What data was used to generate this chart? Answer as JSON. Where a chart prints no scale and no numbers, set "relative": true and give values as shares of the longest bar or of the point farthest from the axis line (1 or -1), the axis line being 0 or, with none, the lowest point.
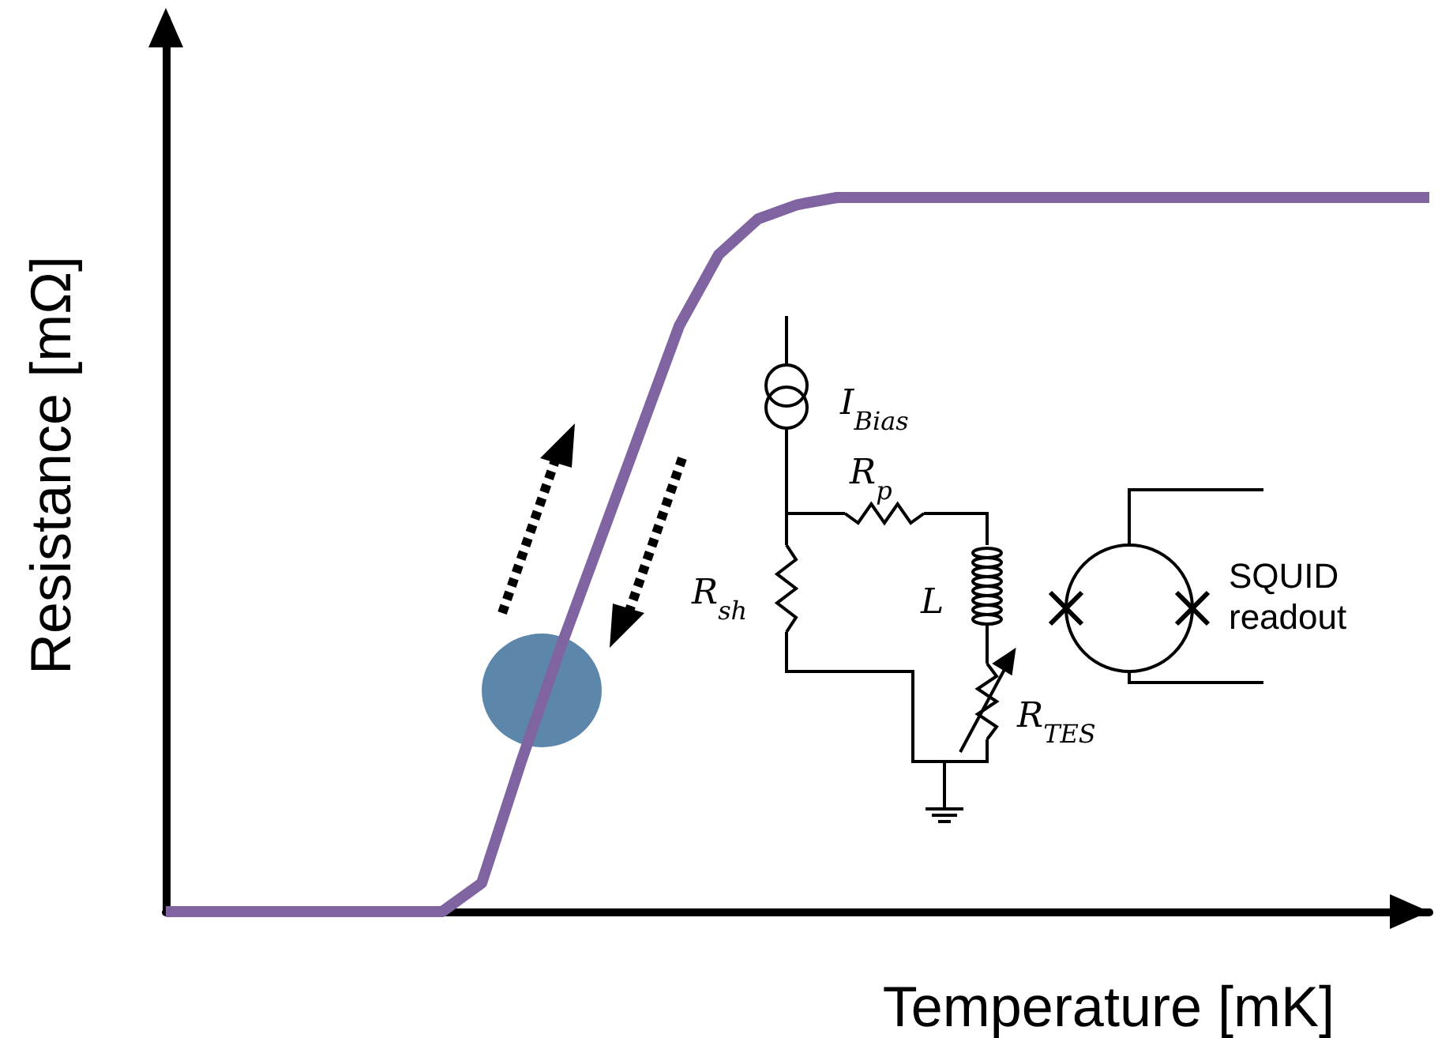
{
  "chart_data": {
    "type": "line",
    "relative": true,
    "xlabel": "Temperature [mK]",
    "ylabel": "Resistance [mΩ]",
    "categories": [
      null,
      null,
      null,
      null,
      null,
      null,
      null,
      null,
      null,
      null,
      null,
      null,
      null,
      null,
      null,
      null,
      null,
      null,
      null,
      null,
      null,
      null,
      null,
      null,
      null,
      null,
      null,
      null,
      null,
      null,
      null,
      null,
      null
    ],
    "series": [
      {
        "color": "#8064a2",
        "values": [
          0,
          0,
          0,
          0,
          0,
          0,
          0,
          0,
          0.04,
          0.21,
          0.37,
          0.52,
          0.67,
          0.82,
          0.92,
          0.97,
          0.99,
          1,
          1,
          1,
          1,
          1,
          1,
          1,
          1,
          1,
          1,
          1,
          1,
          1,
          1,
          1,
          1
        ]
      }
    ],
    "annotations": [
      "I$_{Bias}$",
      "R$_{p}$",
      "R$_{sh}$",
      "L",
      "R$_{TES}$",
      "SQUID readout"
    ]
  }
}
